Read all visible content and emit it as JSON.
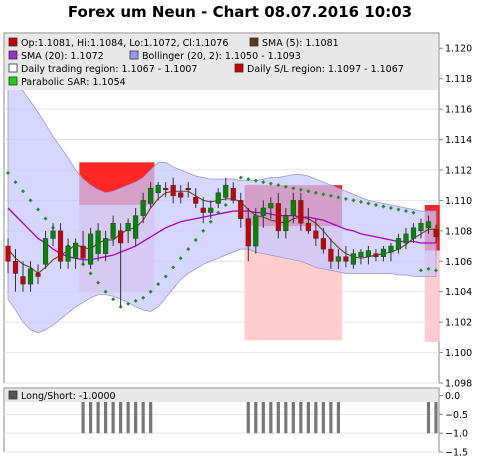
{
  "chart_data": [
    {
      "type": "candlestick",
      "title": "Forex um Neun - Chart 08.07.2016 10:03",
      "ylim": [
        1.098,
        1.121
      ],
      "yticks": [
        "1.098",
        "1.100",
        "1.102",
        "1.104",
        "1.106",
        "1.108",
        "1.110",
        "1.112",
        "1.114",
        "1.116",
        "1.118",
        "1.120"
      ],
      "legend": [
        {
          "label": "Op:1.1081, Hi:1.1084, Lo:1.1072, Cl:1.1076",
          "color": "#cc0000"
        },
        {
          "label": "SMA (5): 1.1081",
          "color": "#5a3a1e"
        },
        {
          "label": "SMA (20): 1.1072",
          "color": "#9933cc"
        },
        {
          "label": "Bollinger (20, 2): 1.1050 - 1.1093",
          "color": "#9999ee"
        },
        {
          "label": "Daily trading region: 1.1067 - 1.1007",
          "color": "#ffffff"
        },
        {
          "label": "Daily S/L region: 1.1097 - 1.1067",
          "color": "#cc0000"
        },
        {
          "label": "Parabolic SAR: 1.1054",
          "color": "#22cc22"
        }
      ],
      "colors": {
        "up": "#008800",
        "down": "#cc0000",
        "sma5": "#6b4226",
        "sma20": "#aa00cc",
        "band": "#c8c8ff",
        "sar": "#228b22"
      },
      "candles": [
        {
          "o": 1.107,
          "h": 1.1075,
          "l": 1.1052,
          "c": 1.106
        },
        {
          "o": 1.106,
          "h": 1.1068,
          "l": 1.104,
          "c": 1.1052
        },
        {
          "o": 1.105,
          "h": 1.106,
          "l": 1.104,
          "c": 1.1045
        },
        {
          "o": 1.1045,
          "h": 1.106,
          "l": 1.104,
          "c": 1.1055
        },
        {
          "o": 1.1052,
          "h": 1.1058,
          "l": 1.1045,
          "c": 1.105
        },
        {
          "o": 1.1058,
          "h": 1.108,
          "l": 1.1055,
          "c": 1.1075
        },
        {
          "o": 1.1075,
          "h": 1.1085,
          "l": 1.107,
          "c": 1.108
        },
        {
          "o": 1.108,
          "h": 1.1085,
          "l": 1.1055,
          "c": 1.106
        },
        {
          "o": 1.106,
          "h": 1.1075,
          "l": 1.1055,
          "c": 1.107
        },
        {
          "o": 1.1062,
          "h": 1.1075,
          "l": 1.1055,
          "c": 1.1072
        },
        {
          "o": 1.107,
          "h": 1.108,
          "l": 1.1058,
          "c": 1.1062
        },
        {
          "o": 1.1058,
          "h": 1.1082,
          "l": 1.1055,
          "c": 1.1078
        },
        {
          "o": 1.1065,
          "h": 1.1085,
          "l": 1.106,
          "c": 1.108
        },
        {
          "o": 1.1065,
          "h": 1.108,
          "l": 1.106,
          "c": 1.1075
        },
        {
          "o": 1.1075,
          "h": 1.109,
          "l": 1.107,
          "c": 1.1085
        },
        {
          "o": 1.108,
          "h": 1.1085,
          "l": 1.103,
          "c": 1.1072
        },
        {
          "o": 1.108,
          "h": 1.1088,
          "l": 1.1072,
          "c": 1.1085
        },
        {
          "o": 1.1075,
          "h": 1.1095,
          "l": 1.107,
          "c": 1.109
        },
        {
          "o": 1.109,
          "h": 1.1105,
          "l": 1.1085,
          "c": 1.11
        },
        {
          "o": 1.1098,
          "h": 1.1112,
          "l": 1.1095,
          "c": 1.1108
        },
        {
          "o": 1.1105,
          "h": 1.1112,
          "l": 1.11,
          "c": 1.111
        },
        {
          "o": 1.1108,
          "h": 1.1112,
          "l": 1.1102,
          "c": 1.1107
        },
        {
          "o": 1.111,
          "h": 1.1115,
          "l": 1.1098,
          "c": 1.1103
        },
        {
          "o": 1.1105,
          "h": 1.111,
          "l": 1.1098,
          "c": 1.1102
        },
        {
          "o": 1.1108,
          "h": 1.1112,
          "l": 1.1102,
          "c": 1.1107
        },
        {
          "o": 1.1102,
          "h": 1.1108,
          "l": 1.1095,
          "c": 1.1098
        },
        {
          "o": 1.1095,
          "h": 1.1102,
          "l": 1.1085,
          "c": 1.1092
        },
        {
          "o": 1.1092,
          "h": 1.11,
          "l": 1.1088,
          "c": 1.1095
        },
        {
          "o": 1.1098,
          "h": 1.1108,
          "l": 1.1095,
          "c": 1.1105
        },
        {
          "o": 1.1102,
          "h": 1.1115,
          "l": 1.11,
          "c": 1.111
        },
        {
          "o": 1.1108,
          "h": 1.1112,
          "l": 1.1098,
          "c": 1.11
        },
        {
          "o": 1.11,
          "h": 1.1105,
          "l": 1.1082,
          "c": 1.1088
        },
        {
          "o": 1.1088,
          "h": 1.1095,
          "l": 1.106,
          "c": 1.107
        },
        {
          "o": 1.107,
          "h": 1.1095,
          "l": 1.1065,
          "c": 1.109
        },
        {
          "o": 1.109,
          "h": 1.11,
          "l": 1.1082,
          "c": 1.1095
        },
        {
          "o": 1.1095,
          "h": 1.1102,
          "l": 1.1088,
          "c": 1.1098
        },
        {
          "o": 1.1098,
          "h": 1.1105,
          "l": 1.1075,
          "c": 1.108
        },
        {
          "o": 1.108,
          "h": 1.1095,
          "l": 1.1075,
          "c": 1.109
        },
        {
          "o": 1.109,
          "h": 1.1105,
          "l": 1.1085,
          "c": 1.11
        },
        {
          "o": 1.11,
          "h": 1.1105,
          "l": 1.108,
          "c": 1.1085
        },
        {
          "o": 1.1085,
          "h": 1.1095,
          "l": 1.1078,
          "c": 1.108
        },
        {
          "o": 1.108,
          "h": 1.1088,
          "l": 1.107,
          "c": 1.1075
        },
        {
          "o": 1.1075,
          "h": 1.1082,
          "l": 1.1065,
          "c": 1.1068
        },
        {
          "o": 1.1068,
          "h": 1.1075,
          "l": 1.1055,
          "c": 1.106
        },
        {
          "o": 1.106,
          "h": 1.1068,
          "l": 1.1055,
          "c": 1.1063
        },
        {
          "o": 1.1063,
          "h": 1.107,
          "l": 1.1056,
          "c": 1.106
        },
        {
          "o": 1.1058,
          "h": 1.1068,
          "l": 1.1055,
          "c": 1.1065
        },
        {
          "o": 1.1063,
          "h": 1.1068,
          "l": 1.1058,
          "c": 1.1066
        },
        {
          "o": 1.1063,
          "h": 1.107,
          "l": 1.1058,
          "c": 1.1067
        },
        {
          "o": 1.1065,
          "h": 1.1068,
          "l": 1.106,
          "c": 1.1063
        },
        {
          "o": 1.1063,
          "h": 1.107,
          "l": 1.106,
          "c": 1.1068
        },
        {
          "o": 1.1066,
          "h": 1.1072,
          "l": 1.106,
          "c": 1.107
        },
        {
          "o": 1.1068,
          "h": 1.1078,
          "l": 1.1065,
          "c": 1.1075
        },
        {
          "o": 1.1072,
          "h": 1.1082,
          "l": 1.1068,
          "c": 1.1078
        },
        {
          "o": 1.1075,
          "h": 1.1085,
          "l": 1.1072,
          "c": 1.1082
        },
        {
          "o": 1.108,
          "h": 1.1088,
          "l": 1.1075,
          "c": 1.1085
        },
        {
          "o": 1.1082,
          "h": 1.109,
          "l": 1.1078,
          "c": 1.1086
        },
        {
          "o": 1.1081,
          "h": 1.1084,
          "l": 1.1072,
          "c": 1.1076
        }
      ],
      "sma5": [
        1.1068,
        1.1062,
        1.1058,
        1.1056,
        1.1052,
        1.1056,
        1.1061,
        1.1064,
        1.1067,
        1.1071,
        1.1069,
        1.1068,
        1.1072,
        1.1074,
        1.1074,
        1.1078,
        1.1081,
        1.1082,
        1.1087,
        1.1095,
        1.1101,
        1.1105,
        1.1106,
        1.1106,
        1.1106,
        1.1103,
        1.11,
        1.1099,
        1.11,
        1.1101,
        1.1101,
        1.1099,
        1.1094,
        1.109,
        1.1089,
        1.1087,
        1.1086,
        1.1085,
        1.1088,
        1.1089,
        1.1088,
        1.1085,
        1.108,
        1.1074,
        1.1069,
        1.1065,
        1.1063,
        1.1062,
        1.1063,
        1.1064,
        1.1065,
        1.1066,
        1.1068,
        1.1071,
        1.1075,
        1.1078,
        1.1081,
        1.1081
      ],
      "sma20": [
        1.1095,
        1.109,
        1.1085,
        1.108,
        1.1075,
        1.1072,
        1.1068,
        1.1065,
        1.1063,
        1.1062,
        1.1061,
        1.1061,
        1.1062,
        1.1063,
        1.1064,
        1.1066,
        1.1068,
        1.107,
        1.1073,
        1.1076,
        1.1079,
        1.1082,
        1.1084,
        1.1086,
        1.1087,
        1.1088,
        1.1089,
        1.109,
        1.1091,
        1.1092,
        1.1093,
        1.1093,
        1.1093,
        1.1092,
        1.1092,
        1.1091,
        1.109,
        1.109,
        1.109,
        1.1089,
        1.1089,
        1.1088,
        1.1087,
        1.1085,
        1.1083,
        1.1081,
        1.108,
        1.1078,
        1.1077,
        1.1076,
        1.1075,
        1.1074,
        1.1073,
        1.1073,
        1.1073,
        1.1072,
        1.1072,
        1.1072
      ],
      "boll_upper": [
        1.1175,
        1.1175,
        1.1172,
        1.1165,
        1.1158,
        1.115,
        1.1142,
        1.1135,
        1.1128,
        1.112,
        1.1114,
        1.111,
        1.1107,
        1.1105,
        1.1106,
        1.1108,
        1.111,
        1.1112,
        1.1115,
        1.112,
        1.1125,
        1.1125,
        1.1122,
        1.112,
        1.1118,
        1.1116,
        1.1115,
        1.1114,
        1.1114,
        1.1114,
        1.1114,
        1.1113,
        1.1113,
        1.1113,
        1.1114,
        1.1115,
        1.1115,
        1.1116,
        1.1117,
        1.1117,
        1.1116,
        1.1114,
        1.1112,
        1.111,
        1.1108,
        1.1106,
        1.1104,
        1.1102,
        1.11,
        1.1099,
        1.1098,
        1.1097,
        1.1096,
        1.1095,
        1.1094,
        1.1093,
        1.1093,
        1.1093
      ],
      "boll_lower": [
        1.1035,
        1.1028,
        1.102,
        1.1015,
        1.1013,
        1.1015,
        1.1018,
        1.1022,
        1.1026,
        1.103,
        1.1033,
        1.1036,
        1.1038,
        1.1038,
        1.1037,
        1.1035,
        1.1033,
        1.103,
        1.1028,
        1.1027,
        1.103,
        1.1036,
        1.1042,
        1.1048,
        1.1052,
        1.1055,
        1.1058,
        1.106,
        1.1062,
        1.1064,
        1.1066,
        1.1068,
        1.1068,
        1.1066,
        1.1065,
        1.1064,
        1.1063,
        1.1062,
        1.1061,
        1.106,
        1.1058,
        1.1056,
        1.1055,
        1.1054,
        1.1053,
        1.1052,
        1.1052,
        1.1052,
        1.1052,
        1.1052,
        1.1052,
        1.1052,
        1.1051,
        1.1051,
        1.105,
        1.105,
        1.105,
        1.105
      ],
      "sar": [
        1.1118,
        1.1112,
        1.1106,
        1.11,
        1.1094,
        1.1088,
        1.1082,
        1.1076,
        1.107,
        1.1064,
        1.1058,
        1.1052,
        1.1046,
        1.104,
        1.1035,
        1.103,
        1.1032,
        1.1034,
        1.1036,
        1.104,
        1.1045,
        1.105,
        1.1056,
        1.1062,
        1.1068,
        1.1074,
        1.108,
        1.1086,
        1.1092,
        1.1097,
        1.1102,
        1.1115,
        1.1114,
        1.1113,
        1.1112,
        1.1111,
        1.111,
        1.1109,
        1.1108,
        1.1107,
        1.1106,
        1.1105,
        1.1104,
        1.1103,
        1.1102,
        1.1101,
        1.11,
        1.1099,
        1.1098,
        1.1097,
        1.1096,
        1.1095,
        1.1094,
        1.1093,
        1.1092,
        1.1054,
        1.1055,
        1.1054
      ],
      "regions": [
        {
          "kind": "sl",
          "from": 10,
          "to": 19,
          "y1": 1.1097,
          "y2": 1.1125,
          "color": "#ff0000"
        },
        {
          "kind": "trading",
          "from": 10,
          "to": 19,
          "y1": 1.104,
          "y2": 1.1097,
          "color": "#ffc8c8"
        },
        {
          "kind": "sl",
          "from": 32,
          "to": 44,
          "y1": 1.1083,
          "y2": 1.111,
          "color": "#ee0000"
        },
        {
          "kind": "trading",
          "from": 32,
          "to": 44,
          "y1": 1.1008,
          "y2": 1.1083,
          "color": "#ffc8c8"
        },
        {
          "kind": "sl",
          "from": 56,
          "to": 57,
          "y1": 1.1067,
          "y2": 1.1097,
          "color": "#ee0000"
        },
        {
          "kind": "trading",
          "from": 56,
          "to": 57,
          "y1": 1.1007,
          "y2": 1.1067,
          "color": "#ffc8c8"
        }
      ]
    },
    {
      "type": "bar",
      "legend": [
        {
          "label": "Long/Short: -1.0000",
          "color": "#555555"
        }
      ],
      "ylim": [
        -1.5,
        0.2
      ],
      "yticks": [
        "0.0",
        "−0.5",
        "−1.0",
        "−1.5"
      ],
      "color": "#777777",
      "values": [
        0,
        0,
        0,
        0,
        0,
        0,
        0,
        0,
        0,
        0,
        -1,
        -1,
        -1,
        -1,
        -1,
        -1,
        -1,
        -1,
        -1,
        -1,
        0,
        0,
        0,
        0,
        0,
        0,
        0,
        0,
        0,
        0,
        0,
        0,
        -1,
        -1,
        -1,
        -1,
        -1,
        -1,
        -1,
        -1,
        -1,
        -1,
        -1,
        -1,
        -1,
        0,
        0,
        0,
        0,
        0,
        0,
        0,
        0,
        0,
        0,
        0,
        -1,
        -1
      ]
    }
  ]
}
